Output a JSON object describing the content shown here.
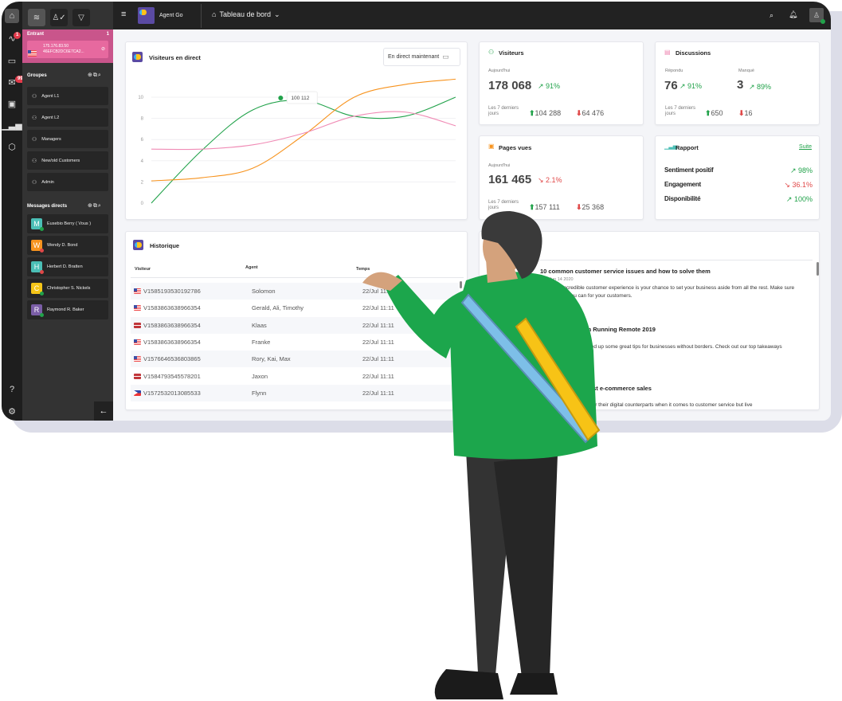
{
  "app": {
    "name": "Agent Go",
    "page_title": "Tableau de bord"
  },
  "colors": {
    "accent_pink": "#c9558b",
    "green": "#21a24a",
    "red": "#e04848",
    "orange": "#f7931e",
    "pink_series": "#f08bb5",
    "topbar": "#222222",
    "logo_purple": "#5a4aa3"
  },
  "rail": {
    "items": [
      {
        "icon": "home-icon"
      },
      {
        "icon": "activity-icon",
        "badge": "1"
      },
      {
        "icon": "chat-icon"
      },
      {
        "icon": "inbox-icon",
        "badge": "999+"
      },
      {
        "icon": "contacts-icon"
      },
      {
        "icon": "bar-chart-icon"
      },
      {
        "icon": "cube-icon"
      }
    ],
    "bottom": [
      {
        "icon": "help-icon"
      },
      {
        "icon": "settings-icon"
      }
    ]
  },
  "sidebar": {
    "toolbar": [
      "layers-icon",
      "user-check-icon",
      "filter-icon"
    ],
    "incoming": {
      "title": "Entrant",
      "count": "1",
      "entry": {
        "ip": "175.176.83.50",
        "id": "46EFCB2DC6E7CA2..."
      }
    },
    "groups": {
      "title": "Groupes",
      "items": [
        "Agent L1",
        "Agent L2",
        "Managers",
        "New/old Customers",
        "Admin"
      ]
    },
    "direct": {
      "title": "Messages directs",
      "items": [
        {
          "initial": "M",
          "name": "Eusebio Berry ( Vous )",
          "color": "#4bbfb6",
          "status": "#21a24a"
        },
        {
          "initial": "W",
          "name": "Wendy D. Bond",
          "color": "#f7931e",
          "status": "#e04848"
        },
        {
          "initial": "H",
          "name": "Herbert D. Bratten",
          "color": "#4bbfb6",
          "status": "#e04848"
        },
        {
          "initial": "C",
          "name": "Christopher S. Nickels",
          "color": "#f5c518",
          "status": "#21a24a"
        },
        {
          "initial": "R",
          "name": "Raymond R. Baker",
          "color": "#7b5ea7",
          "status": "#21a24a"
        }
      ]
    }
  },
  "live": {
    "title": "Visiteurs en direct",
    "filter": "En direct maintenant",
    "tooltip": "100 112"
  },
  "chart_data": {
    "type": "line",
    "title": "Visiteurs en direct",
    "ylim": [
      0,
      12
    ],
    "yticks": [
      0,
      2,
      4,
      6,
      8,
      10
    ],
    "grid": true,
    "x": [
      0,
      1,
      2,
      3,
      4,
      5,
      6
    ],
    "series": [
      {
        "color": "#21a24a",
        "values": [
          0,
          5.0,
          8.8,
          9.7,
          8.2,
          8.2,
          10
        ]
      },
      {
        "color": "#f7931e",
        "values": [
          2.1,
          2.4,
          3.3,
          6.4,
          10.0,
          11.2,
          11.7
        ]
      },
      {
        "color": "#f08bb5",
        "values": [
          5.1,
          5.1,
          5.5,
          6.6,
          8.2,
          8.6,
          7.3
        ]
      }
    ],
    "annotation": {
      "series": 0,
      "label": "100 112",
      "y": 10
    }
  },
  "visitors": {
    "title": "Visiteurs",
    "today_label": "Aujourd'hui",
    "today": "178 068",
    "trend": "91%",
    "week_label": "Les 7 derniers jours",
    "up": "104 288",
    "down": "64 476"
  },
  "discussions": {
    "title": "Discussions",
    "answered_label": "Répondu",
    "answered": "76",
    "answered_trend": "91%",
    "missed_label": "Manqué",
    "missed": "3",
    "missed_trend": "89%",
    "week_label": "Les 7 derniers jours",
    "up": "650",
    "down": "16"
  },
  "pageviews": {
    "title": "Pages vues",
    "today_label": "Aujourd'hui",
    "today": "161 465",
    "trend": "2.1%",
    "week_label": "Les 7 derniers jours",
    "up": "157 111",
    "down": "25 368"
  },
  "report": {
    "title": "Rapport",
    "more": "Suite",
    "rows": [
      {
        "label": "Sentiment positif",
        "value": "98%",
        "dir": "up"
      },
      {
        "label": "Engagement",
        "value": "36.1%",
        "dir": "down"
      },
      {
        "label": "Disponibilité",
        "value": "100%",
        "dir": "up"
      }
    ]
  },
  "history": {
    "title": "Historique",
    "columns": [
      "Visiteur",
      "Agent",
      "Temps"
    ],
    "rows": [
      {
        "flag": "us",
        "visitor": "V1585193530192786",
        "agent": "Solomon",
        "time": "22/Jul 11:11"
      },
      {
        "flag": "us",
        "visitor": "V1583863638966354",
        "agent": "Gerald, Ali, Timothy",
        "time": "22/Jul 11:11"
      },
      {
        "flag": "lv",
        "visitor": "V1583863638966354",
        "agent": "Klaas",
        "time": "22/Jul 11:11"
      },
      {
        "flag": "us",
        "visitor": "V1583863638966354",
        "agent": "Franke",
        "time": "22/Jul 11:11"
      },
      {
        "flag": "us",
        "visitor": "V1576646536803865",
        "agent": "Rory, Kai, Max",
        "time": "22/Jul 11:11"
      },
      {
        "flag": "lv",
        "visitor": "V1584793545578201",
        "agent": "Jaxon",
        "time": "22/Jul 11:11"
      },
      {
        "flag": "ph",
        "visitor": "V1572532013085533",
        "agent": "Flynn",
        "time": "22/Jul 11:11"
      }
    ]
  },
  "articles": [
    {
      "title": "10 common customer service issues and how to solve them",
      "date": "Sun Jun 14 2020",
      "body": "Providing an incredible customer experience is your chance to set your business aside from all the rest. Make sure you're doing all you can for your customers."
    },
    {
      "title": "Key takeaways from Running Remote 2019",
      "date": "",
      "body": "Running Remote 2019 offered up some great tips for businesses without borders. Check out our top takeaways from the summit here."
    },
    {
      "title": "How to use live chat to boost e-commerce sales",
      "date": "",
      "body": "Physical stores have an edge over their digital counterparts when it comes to customer service but live"
    }
  ]
}
